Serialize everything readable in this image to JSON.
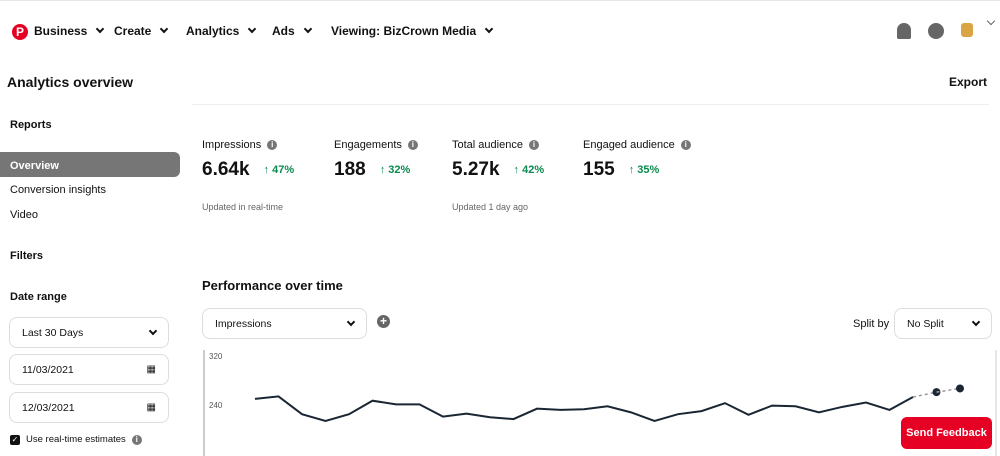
{
  "nav": {
    "logo": "P",
    "items": [
      "Business",
      "Create",
      "Analytics",
      "Ads",
      "Viewing: BizCrown Media"
    ]
  },
  "header": {
    "icons": [
      "bell-icon",
      "chat-icon",
      "avatar"
    ]
  },
  "page": {
    "title": "Analytics overview",
    "export": "Export"
  },
  "sidebar": {
    "reports_heading": "Reports",
    "reports": [
      "Overview",
      "Conversion insights",
      "Video"
    ],
    "filters_heading": "Filters",
    "date_range_heading": "Date range",
    "date_range": "Last 30 Days",
    "start_date": "11/03/2021",
    "end_date": "12/03/2021",
    "realtime_label": "Use real-time estimates",
    "realtime_checked": true
  },
  "metrics": [
    {
      "label": "Impressions",
      "value": "6.64k",
      "change": "47%"
    },
    {
      "label": "Engagements",
      "value": "188",
      "change": "32%"
    },
    {
      "label": "Total audience",
      "value": "5.27k",
      "change": "42%"
    },
    {
      "label": "Engaged audience",
      "value": "155",
      "change": "35%"
    }
  ],
  "updates": [
    "Updated in real-time",
    "Updated 1 day ago"
  ],
  "performance": {
    "title": "Performance over time",
    "metric": "Impressions",
    "split_label": "Split by",
    "split_value": "No Split"
  },
  "chart_data": {
    "type": "line",
    "y_ticks": [
      "320",
      "240"
    ],
    "values": [
      250,
      254,
      225,
      214,
      225,
      247,
      241,
      241,
      221,
      226,
      220,
      217,
      234,
      232,
      233,
      238,
      228,
      214,
      225,
      230,
      243,
      224,
      239,
      238,
      228,
      237,
      244,
      232,
      253
    ],
    "estimated_values": [
      261,
      267
    ]
  },
  "feedback": "Send Feedback",
  "colors": {
    "brand": "#e60023",
    "positive": "#0a8a4e",
    "line": "#1a2634"
  }
}
